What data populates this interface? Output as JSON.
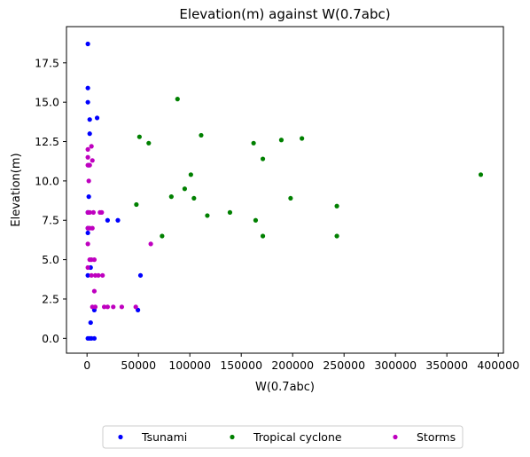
{
  "chart_data": {
    "type": "scatter",
    "title": "Elevation(m) against W(0.7abc)",
    "xlabel": "W(0.7abc)",
    "ylabel": "Elevation(m)",
    "xlim": [
      -20000,
      405000
    ],
    "ylim": [
      -0.94,
      19.8
    ],
    "xticks": [
      0,
      50000,
      100000,
      150000,
      200000,
      250000,
      300000,
      350000,
      400000
    ],
    "yticks": [
      0.0,
      2.5,
      5.0,
      7.5,
      10.0,
      12.5,
      15.0,
      17.5
    ],
    "xtick_labels": [
      "0",
      "50000",
      "100000",
      "150000",
      "200000",
      "250000",
      "300000",
      "350000",
      "400000"
    ],
    "ytick_labels": [
      "0.0",
      "2.5",
      "5.0",
      "7.5",
      "10.0",
      "12.5",
      "15.0",
      "17.5"
    ],
    "grid": false,
    "legend_position": "bottom-center",
    "series": [
      {
        "name": "Tsunami",
        "color": "#0000ff",
        "points": [
          [
            800,
            18.7
          ],
          [
            800,
            15.9
          ],
          [
            800,
            15.0
          ],
          [
            2600,
            13.9
          ],
          [
            9800,
            14.0
          ],
          [
            2600,
            13.0
          ],
          [
            1700,
            11.0
          ],
          [
            1700,
            9.0
          ],
          [
            800,
            8.0
          ],
          [
            800,
            7.0
          ],
          [
            800,
            6.7
          ],
          [
            20000,
            7.5
          ],
          [
            30000,
            7.5
          ],
          [
            3500,
            4.5
          ],
          [
            800,
            4.0
          ],
          [
            52000,
            4.0
          ],
          [
            7100,
            1.8
          ],
          [
            49500,
            1.8
          ],
          [
            3500,
            1.0
          ],
          [
            800,
            0.0
          ],
          [
            2600,
            0.0
          ],
          [
            4300,
            0.0
          ],
          [
            7100,
            0.0
          ]
        ]
      },
      {
        "name": "Tropical cyclone",
        "color": "#008000",
        "points": [
          [
            88000,
            15.2
          ],
          [
            51000,
            12.8
          ],
          [
            60000,
            12.4
          ],
          [
            111000,
            12.9
          ],
          [
            162000,
            12.4
          ],
          [
            189000,
            12.6
          ],
          [
            209000,
            12.7
          ],
          [
            171000,
            11.4
          ],
          [
            101000,
            10.4
          ],
          [
            383000,
            10.4
          ],
          [
            95000,
            9.5
          ],
          [
            82000,
            9.0
          ],
          [
            104000,
            8.9
          ],
          [
            198000,
            8.9
          ],
          [
            48000,
            8.5
          ],
          [
            243000,
            8.4
          ],
          [
            139000,
            8.0
          ],
          [
            117000,
            7.8
          ],
          [
            164000,
            7.5
          ],
          [
            73000,
            6.5
          ],
          [
            171000,
            6.5
          ],
          [
            243000,
            6.5
          ]
        ]
      },
      {
        "name": "Storms",
        "color": "#bf00bf",
        "points": [
          [
            800,
            12.0
          ],
          [
            4300,
            12.2
          ],
          [
            800,
            11.5
          ],
          [
            5200,
            11.3
          ],
          [
            800,
            11.0
          ],
          [
            2600,
            11.0
          ],
          [
            1700,
            10.0
          ],
          [
            800,
            8.0
          ],
          [
            2600,
            8.0
          ],
          [
            6200,
            8.0
          ],
          [
            12600,
            8.0
          ],
          [
            14300,
            8.0
          ],
          [
            800,
            7.0
          ],
          [
            2600,
            7.0
          ],
          [
            5200,
            7.0
          ],
          [
            800,
            6.0
          ],
          [
            62000,
            6.0
          ],
          [
            2600,
            5.0
          ],
          [
            4300,
            5.0
          ],
          [
            7100,
            5.0
          ],
          [
            800,
            4.5
          ],
          [
            4300,
            4.0
          ],
          [
            8000,
            4.0
          ],
          [
            11000,
            4.0
          ],
          [
            15100,
            4.0
          ],
          [
            7100,
            3.0
          ],
          [
            5200,
            2.0
          ],
          [
            8000,
            2.0
          ],
          [
            16700,
            2.0
          ],
          [
            20000,
            2.0
          ],
          [
            25500,
            2.0
          ],
          [
            33800,
            2.0
          ],
          [
            47400,
            2.0
          ]
        ]
      }
    ]
  }
}
